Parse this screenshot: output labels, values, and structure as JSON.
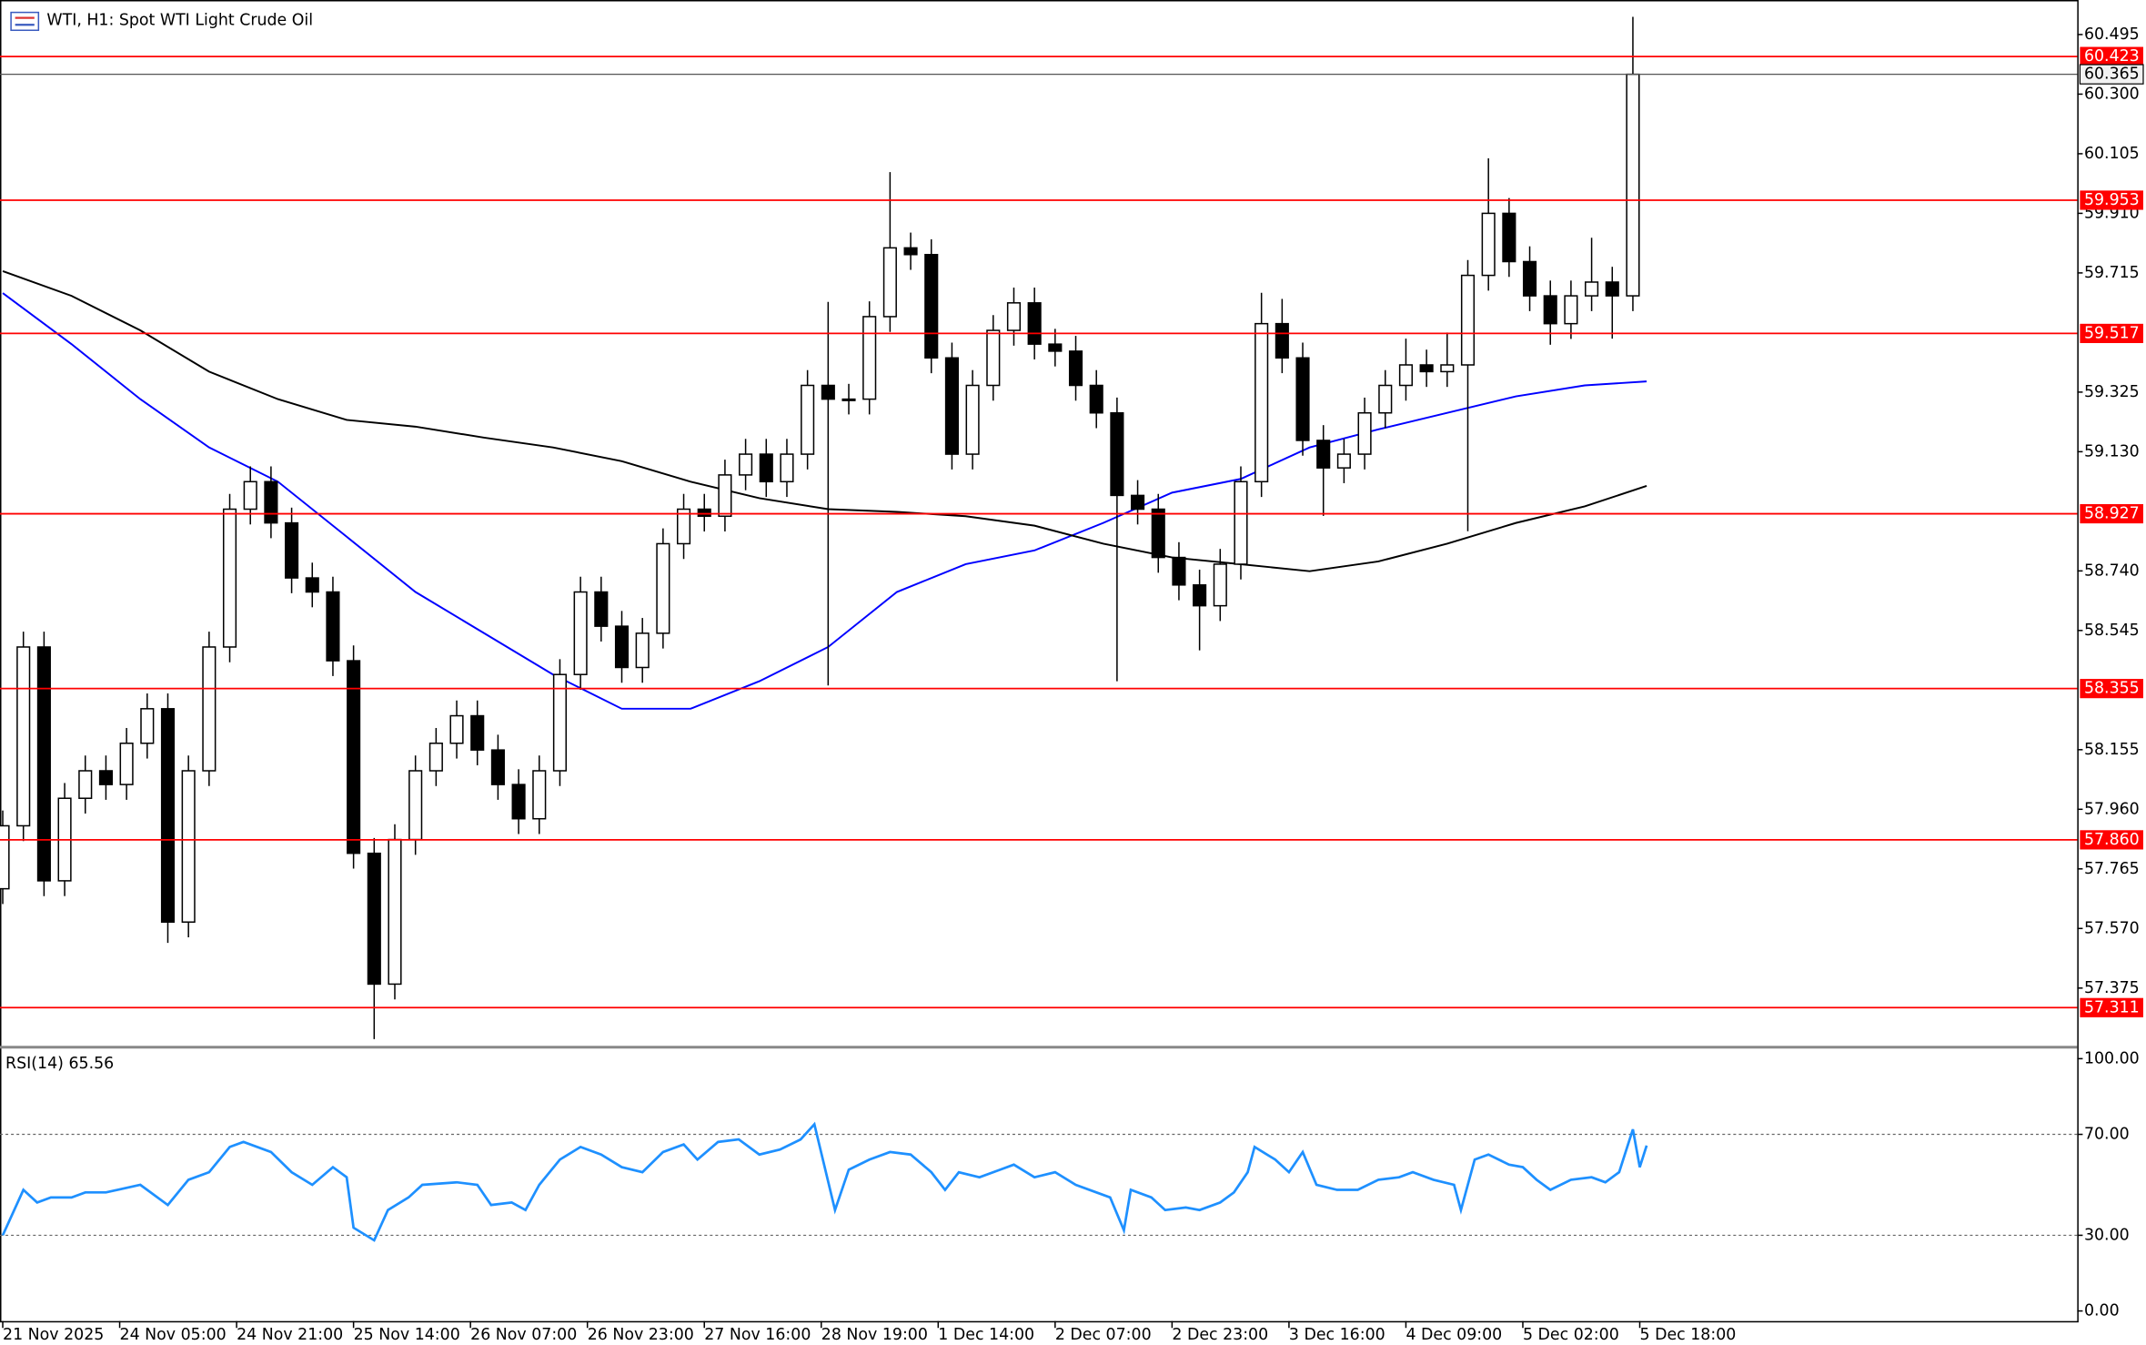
{
  "chart_data": {
    "type": "candlestick",
    "title": "WTI, H1:  Spot WTI Light Crude Oil",
    "x": [
      0,
      3,
      6,
      9,
      12,
      15,
      18,
      21,
      24,
      27,
      30,
      33,
      36,
      39,
      42,
      45,
      48,
      51,
      54,
      57,
      60,
      63,
      66,
      69,
      72,
      75,
      78,
      81,
      84,
      87,
      90,
      93,
      96,
      99,
      102,
      105,
      108,
      111,
      114,
      117,
      120,
      123,
      126,
      129,
      132,
      135,
      138,
      141,
      144,
      147,
      150,
      153,
      156,
      159,
      162,
      165,
      168,
      171,
      174,
      177,
      180,
      183,
      186,
      189,
      192,
      195,
      198,
      201,
      204,
      207,
      210,
      213,
      216,
      219,
      222,
      225,
      228,
      231,
      234,
      237
    ],
    "open": [
      57.7,
      57.906,
      58.491,
      57.726,
      57.996,
      58.086,
      58.041,
      58.176,
      58.289,
      57.591,
      58.086,
      58.491,
      58.942,
      59.032,
      58.897,
      58.717,
      58.671,
      58.446,
      57.816,
      57.388,
      57.861,
      58.086,
      58.176,
      58.266,
      58.154,
      58.041,
      57.929,
      58.086,
      58.401,
      58.671,
      58.559,
      58.424,
      58.536,
      58.829,
      58.942,
      58.919,
      59.054,
      59.122,
      59.032,
      59.122,
      59.347,
      59.302,
      59.302,
      59.572,
      59.797,
      59.775,
      59.437,
      59.122,
      59.347,
      59.527,
      59.617,
      59.482,
      59.459,
      59.347,
      59.257,
      58.987,
      58.942,
      58.784,
      58.694,
      58.626,
      58.762,
      59.032,
      59.549,
      59.437,
      59.167,
      59.077,
      59.122,
      59.257,
      59.347,
      59.414,
      59.392,
      59.414,
      59.707,
      59.91,
      59.752,
      59.64,
      59.549,
      59.64,
      59.685,
      59.64
    ],
    "high": [
      57.956,
      58.541,
      58.541,
      58.046,
      58.136,
      58.136,
      58.226,
      58.339,
      58.339,
      58.136,
      58.541,
      58.992,
      59.082,
      59.082,
      58.947,
      58.767,
      58.721,
      58.496,
      57.866,
      57.911,
      58.136,
      58.226,
      58.316,
      58.316,
      58.204,
      58.091,
      58.136,
      58.451,
      58.721,
      58.721,
      58.609,
      58.586,
      58.879,
      58.992,
      58.992,
      59.104,
      59.172,
      59.172,
      59.172,
      59.397,
      59.62,
      59.352,
      59.622,
      60.045,
      59.847,
      59.825,
      59.487,
      59.397,
      59.577,
      59.667,
      59.667,
      59.532,
      59.509,
      59.397,
      59.307,
      59.037,
      58.992,
      58.834,
      58.744,
      58.812,
      59.082,
      59.65,
      59.63,
      59.487,
      59.217,
      59.172,
      59.307,
      59.397,
      59.5,
      59.464,
      59.52,
      59.757,
      60.09,
      59.96,
      59.802,
      59.69,
      59.69,
      59.83,
      59.735,
      60.553
    ],
    "low": [
      57.65,
      57.856,
      57.676,
      57.676,
      57.946,
      57.991,
      57.991,
      58.126,
      57.523,
      57.541,
      58.036,
      58.441,
      58.892,
      58.847,
      58.667,
      58.621,
      58.396,
      57.766,
      57.208,
      57.338,
      57.811,
      58.036,
      58.126,
      58.104,
      57.991,
      57.879,
      57.879,
      58.036,
      58.351,
      58.509,
      58.374,
      58.374,
      58.486,
      58.779,
      58.869,
      58.869,
      59.004,
      58.982,
      58.982,
      59.072,
      58.365,
      59.252,
      59.252,
      59.522,
      59.725,
      59.387,
      59.072,
      59.072,
      59.297,
      59.477,
      59.432,
      59.409,
      59.297,
      59.207,
      58.379,
      58.892,
      58.734,
      58.644,
      58.48,
      58.576,
      58.712,
      58.982,
      59.387,
      59.117,
      58.92,
      59.027,
      59.072,
      59.207,
      59.297,
      59.342,
      59.342,
      58.87,
      59.657,
      59.702,
      59.59,
      59.48,
      59.499,
      59.59,
      59.5,
      59.59
    ],
    "close": [
      57.906,
      58.491,
      57.726,
      57.996,
      58.086,
      58.041,
      58.176,
      58.289,
      57.591,
      58.086,
      58.491,
      58.942,
      59.032,
      58.897,
      58.717,
      58.671,
      58.446,
      57.816,
      57.388,
      57.861,
      58.086,
      58.176,
      58.266,
      58.154,
      58.041,
      57.929,
      58.086,
      58.401,
      58.671,
      58.559,
      58.424,
      58.536,
      58.829,
      58.942,
      58.919,
      59.054,
      59.122,
      59.032,
      59.122,
      59.347,
      59.302,
      59.302,
      59.572,
      59.797,
      59.775,
      59.437,
      59.122,
      59.347,
      59.527,
      59.617,
      59.482,
      59.459,
      59.347,
      59.257,
      58.987,
      58.942,
      58.784,
      58.694,
      58.626,
      58.762,
      59.032,
      59.549,
      59.437,
      59.167,
      59.077,
      59.122,
      59.257,
      59.347,
      59.414,
      59.392,
      59.414,
      59.707,
      59.91,
      59.752,
      59.64,
      59.549,
      59.64,
      59.685,
      59.64,
      60.365
    ],
    "up_color": "#ffffff",
    "down_color": "#000000",
    "xlim": [
      -0.4,
      301.6
    ],
    "ylim": [
      57.186,
      60.608
    ],
    "yticks": [
      60.495,
      {
        "value": 60.3,
        "label": "60.300"
      },
      60.105,
      {
        "value": 59.91,
        "label": "59.910"
      },
      59.715,
      59.325,
      {
        "value": 59.13,
        "label": "59.130"
      },
      {
        "value": 58.74,
        "label": "58.740"
      },
      58.545,
      58.155,
      {
        "value": 57.96,
        "label": "57.960"
      },
      57.765,
      {
        "value": 57.57,
        "label": "57.570"
      },
      57.375
    ],
    "xticks": [
      {
        "value": 0,
        "label": "21 Nov 2025"
      },
      {
        "value": 17,
        "label": "24 Nov 05:00"
      },
      {
        "value": 34,
        "label": "24 Nov 21:00"
      },
      {
        "value": 51,
        "label": "25 Nov 14:00"
      },
      {
        "value": 68,
        "label": "26 Nov 07:00"
      },
      {
        "value": 85,
        "label": "26 Nov 23:00"
      },
      {
        "value": 102,
        "label": "27 Nov 16:00"
      },
      {
        "value": 119,
        "label": "28 Nov 19:00"
      },
      {
        "value": 136,
        "label": "1 Dec 14:00"
      },
      {
        "value": 153,
        "label": "2 Dec 07:00"
      },
      {
        "value": 170,
        "label": "2 Dec 23:00"
      },
      {
        "value": 187,
        "label": "3 Dec 16:00"
      },
      {
        "value": 204,
        "label": "4 Dec 09:00"
      },
      {
        "value": 221,
        "label": "5 Dec 02:00"
      },
      {
        "value": 238,
        "label": "5 Dec 18:00"
      }
    ],
    "levels": [
      60.423,
      59.953,
      59.517,
      58.927,
      58.355,
      {
        "value": 57.86,
        "label": "57.860"
      },
      57.311
    ],
    "level_color": "#ff0000",
    "last_price": 60.365,
    "moving_averages": [
      {
        "color": "#0000ff",
        "x": [
          0,
          10,
          20,
          30,
          40,
          50,
          60,
          70,
          80,
          90,
          100,
          110,
          120,
          130,
          140,
          150,
          160,
          170,
          180,
          190,
          200,
          210,
          220,
          230,
          239
        ],
        "values": [
          59.649,
          59.482,
          59.302,
          59.144,
          59.032,
          58.852,
          58.671,
          58.536,
          58.401,
          58.289,
          58.289,
          58.379,
          58.491,
          58.671,
          58.762,
          58.807,
          58.897,
          58.996,
          59.041,
          59.144,
          59.203,
          59.257,
          59.311,
          59.347,
          59.36
        ]
      },
      {
        "color": "#000000",
        "x": [
          0,
          10,
          20,
          30,
          40,
          50,
          60,
          70,
          80,
          90,
          100,
          110,
          120,
          130,
          140,
          150,
          160,
          170,
          180,
          190,
          200,
          210,
          220,
          230,
          239
        ],
        "values": [
          59.721,
          59.64,
          59.527,
          59.392,
          59.302,
          59.234,
          59.212,
          59.176,
          59.144,
          59.099,
          59.032,
          58.978,
          58.942,
          58.933,
          58.919,
          58.888,
          58.829,
          58.784,
          58.762,
          58.739,
          58.771,
          58.829,
          58.897,
          58.951,
          59.018
        ]
      }
    ],
    "rsi": {
      "label": "RSI(14) 65.56",
      "color": "#1e90ff",
      "ylim": [
        -4,
        104
      ],
      "yticks": [
        {
          "value": 100,
          "label": "100.00"
        },
        {
          "value": 70,
          "label": "70.00"
        },
        {
          "value": 30,
          "label": "30.00"
        },
        {
          "value": 0,
          "label": "0.00"
        }
      ],
      "levels": [
        70,
        30
      ],
      "x": [
        0,
        3,
        5,
        7,
        10,
        12,
        15,
        20,
        24,
        27,
        30,
        33,
        35,
        39,
        42,
        45,
        48,
        50,
        51,
        54,
        56,
        59,
        61,
        66,
        69,
        71,
        74,
        76,
        78,
        81,
        84,
        87,
        90,
        93,
        96,
        99,
        101,
        104,
        107,
        110,
        113,
        116,
        118,
        121,
        123,
        126,
        129,
        132,
        135,
        137,
        139,
        142,
        145,
        147,
        150,
        153,
        156,
        159,
        161,
        163,
        164,
        167,
        169,
        172,
        174,
        177,
        179,
        181,
        182,
        185,
        187,
        189,
        191,
        194,
        197,
        200,
        203,
        205,
        208,
        211,
        212,
        214,
        216,
        219,
        221,
        223,
        225,
        228,
        231,
        233,
        235,
        237,
        238,
        239
      ],
      "values": [
        30,
        48,
        43,
        45,
        45,
        47,
        47,
        50,
        42,
        52,
        55,
        65,
        67,
        63,
        55,
        50,
        57,
        53,
        33,
        28,
        40,
        45,
        50,
        51,
        50,
        42,
        43,
        40,
        50,
        60,
        65,
        62,
        57,
        55,
        63,
        66,
        60,
        67,
        68,
        62,
        64,
        68,
        74,
        40,
        56,
        60,
        63,
        62,
        55,
        48,
        55,
        53,
        56,
        58,
        53,
        55,
        50,
        47,
        45,
        32,
        48,
        45,
        40,
        41,
        40,
        43,
        47,
        55,
        65,
        60,
        55,
        63,
        50,
        48,
        48,
        52,
        53,
        55,
        52,
        50,
        40,
        60,
        62,
        58,
        57,
        52,
        48,
        52,
        53,
        51,
        55,
        72,
        57,
        65.56
      ]
    }
  }
}
